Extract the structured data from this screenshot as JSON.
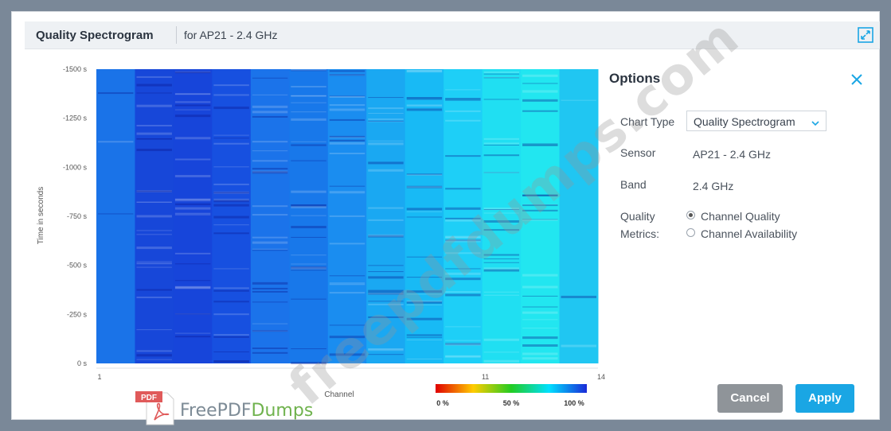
{
  "header": {
    "title": "Quality Spectrogram",
    "subtitle": "for AP21 - 2.4 GHz"
  },
  "chart_data": {
    "type": "heatmap",
    "title": "",
    "xlabel": "Channel",
    "ylabel": "Time in seconds",
    "y_ticks": [
      "-1500 s",
      "-1250 s",
      "-1000 s",
      "-750 s",
      "-500 s",
      "-250 s",
      "0 s"
    ],
    "x_ticks": [
      {
        "value": 1,
        "label": "1"
      },
      {
        "value": 11,
        "label": "11"
      },
      {
        "value": 14,
        "label": "14"
      }
    ],
    "xlim": [
      1,
      14
    ],
    "ylim": [
      -1500,
      0
    ],
    "color_scale": {
      "min_label": "0 %",
      "mid_label": "50 %",
      "max_label": "100 %",
      "colors": [
        "#e00000",
        "#ffcc00",
        "#22cc22",
        "#00e0ff",
        "#1a2ad8"
      ]
    },
    "columns": [
      {
        "x_start": 1,
        "x_end": 2,
        "color": "#1a73e8"
      },
      {
        "x_start": 2,
        "x_end": 3,
        "color": "#1747d9"
      },
      {
        "x_start": 3,
        "x_end": 4,
        "color": "#1745da"
      },
      {
        "x_start": 4,
        "x_end": 5,
        "color": "#1750e0"
      },
      {
        "x_start": 5,
        "x_end": 6,
        "color": "#1b73ea"
      },
      {
        "x_start": 6,
        "x_end": 7,
        "color": "#1878ea"
      },
      {
        "x_start": 7,
        "x_end": 8,
        "color": "#1a8df0"
      },
      {
        "x_start": 8,
        "x_end": 9,
        "color": "#1aa8f2"
      },
      {
        "x_start": 9,
        "x_end": 10,
        "color": "#18baf5"
      },
      {
        "x_start": 10,
        "x_end": 11,
        "color": "#1ecff7"
      },
      {
        "x_start": 11,
        "x_end": 12,
        "color": "#20dff2"
      },
      {
        "x_start": 12,
        "x_end": 13,
        "color": "#22e6f0"
      },
      {
        "x_start": 13,
        "x_end": 14,
        "color": "#20c6f2"
      }
    ]
  },
  "options": {
    "title": "Options",
    "chart_type_label": "Chart Type",
    "chart_type_value": "Quality Spectrogram",
    "sensor_label": "Sensor",
    "sensor_value": "AP21 - 2.4 GHz",
    "band_label": "Band",
    "band_value": "2.4 GHz",
    "quality_label_line1": "Quality",
    "quality_label_line2": "Metrics:",
    "radio_channel_quality": "Channel Quality",
    "radio_channel_availability": "Channel Availability",
    "selected_metric": "Channel Quality",
    "cancel_label": "Cancel",
    "apply_label": "Apply"
  },
  "watermark": {
    "text": "freepdfdumps.com",
    "brand_icon_text": "PDF",
    "brand_name_part1": "FreePDF",
    "brand_name_part2": "Dumps"
  },
  "colors": {
    "accent": "#1aa6e4",
    "cancel": "#8f9499",
    "background": "#7a8898"
  }
}
